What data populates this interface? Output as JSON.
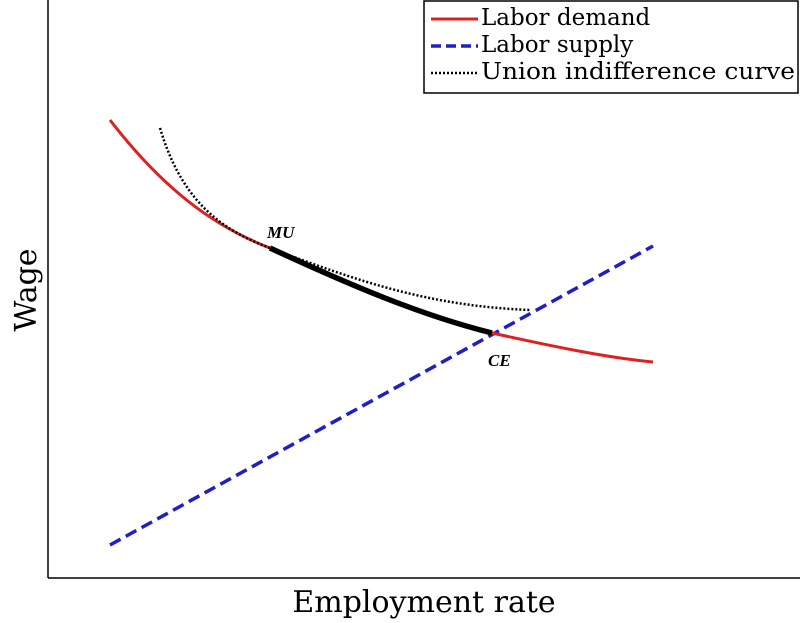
{
  "legend": [
    "Labor demand",
    "Labor supply",
    "Union indifference curve"
  ],
  "x_label": "Employment rate",
  "y_label": "Wage",
  "points": [
    "MU",
    "CE"
  ]
}
